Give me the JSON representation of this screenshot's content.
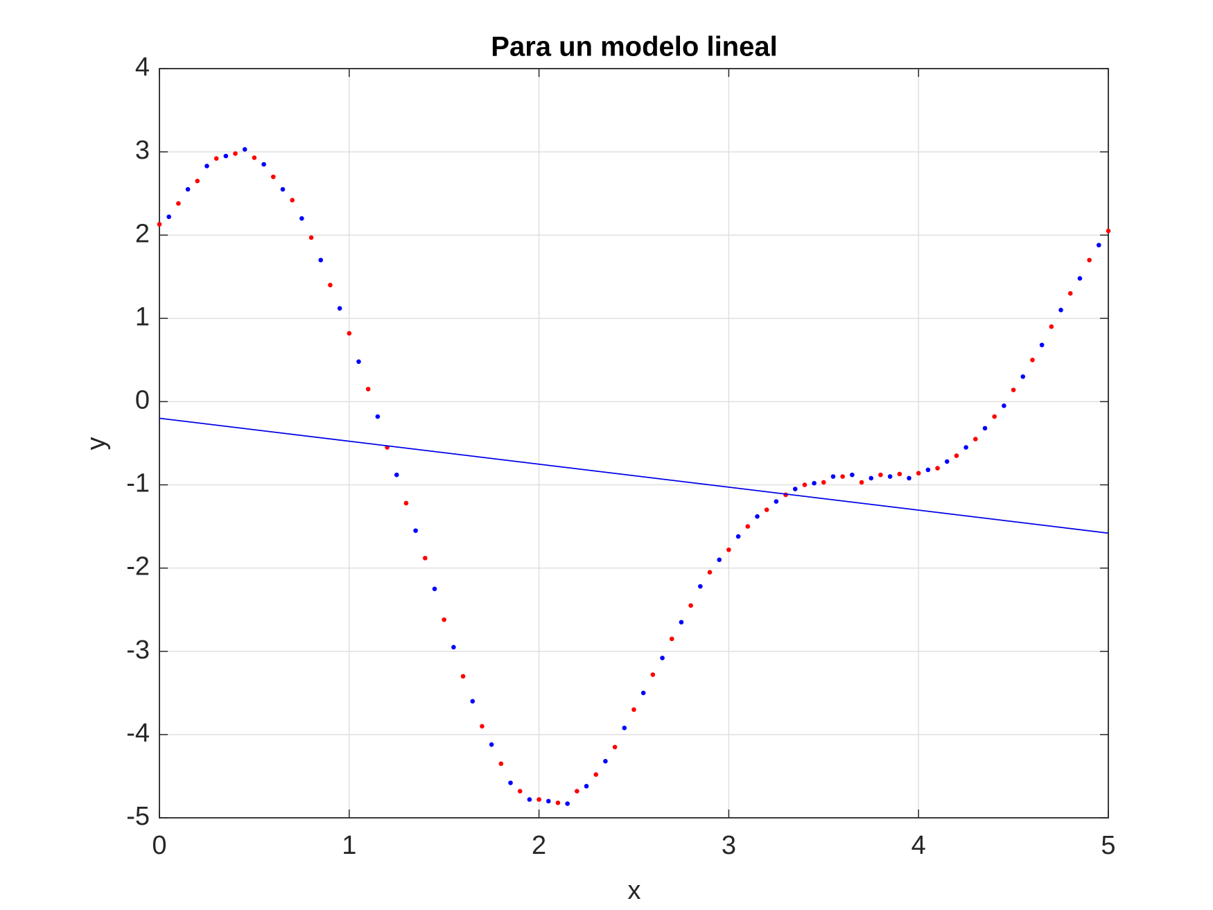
{
  "chart_data": {
    "type": "scatter",
    "title": "Para un modelo lineal",
    "x_label": "x",
    "y_label": "y",
    "xlim": [
      0,
      5
    ],
    "ylim": [
      -5,
      4
    ],
    "xticks": [
      0,
      1,
      2,
      3,
      4,
      5
    ],
    "yticks": [
      -5,
      -4,
      -3,
      -2,
      -1,
      0,
      1,
      2,
      3,
      4
    ],
    "grid": true,
    "series": [
      {
        "kind": "markers",
        "color": "#ff0000",
        "x": [
          0,
          0.1,
          0.2,
          0.3,
          0.4,
          0.5,
          0.6,
          0.7,
          0.8,
          0.9,
          1,
          1.1,
          1.2,
          1.3,
          1.4,
          1.5,
          1.6,
          1.7,
          1.8,
          1.9,
          2,
          2.1,
          2.2,
          2.3,
          2.4,
          2.5,
          2.6,
          2.7,
          2.8,
          2.9,
          3,
          3.1,
          3.2,
          3.3,
          3.4,
          3.5,
          3.6,
          3.7,
          3.8,
          3.9,
          4,
          4.1,
          4.2,
          4.3,
          4.4,
          4.5,
          4.6,
          4.7,
          4.8,
          4.9,
          5
        ],
        "values": [
          2.13,
          2.38,
          2.65,
          2.92,
          2.98,
          2.93,
          2.7,
          2.42,
          1.97,
          1.4,
          0.82,
          0.15,
          -0.55,
          -1.22,
          -1.88,
          -2.62,
          -3.3,
          -3.9,
          -4.35,
          -4.68,
          -4.78,
          -4.82,
          -4.68,
          -4.48,
          -4.15,
          -3.7,
          -3.28,
          -2.85,
          -2.45,
          -2.05,
          -1.78,
          -1.5,
          -1.3,
          -1.12,
          -1.0,
          -0.97,
          -0.9,
          -0.97,
          -0.88,
          -0.87,
          -0.86,
          -0.8,
          -0.65,
          -0.45,
          -0.18,
          0.14,
          0.5,
          0.9,
          1.3,
          1.7,
          2.05
        ]
      },
      {
        "kind": "markers",
        "color": "#0000ff",
        "x": [
          0.05,
          0.15,
          0.25,
          0.35,
          0.45,
          0.55,
          0.65,
          0.75,
          0.85,
          0.95,
          1.05,
          1.15,
          1.25,
          1.35,
          1.45,
          1.55,
          1.65,
          1.75,
          1.85,
          1.95,
          2.05,
          2.15,
          2.25,
          2.35,
          2.45,
          2.55,
          2.65,
          2.75,
          2.85,
          2.95,
          3.05,
          3.15,
          3.25,
          3.35,
          3.45,
          3.55,
          3.65,
          3.75,
          3.85,
          3.95,
          4.05,
          4.15,
          4.25,
          4.35,
          4.45,
          4.55,
          4.65,
          4.75,
          4.85,
          4.95
        ],
        "values": [
          2.22,
          2.55,
          2.83,
          2.95,
          3.03,
          2.85,
          2.55,
          2.2,
          1.7,
          1.12,
          0.48,
          -0.18,
          -0.88,
          -1.55,
          -2.25,
          -2.95,
          -3.6,
          -4.12,
          -4.58,
          -4.78,
          -4.8,
          -4.83,
          -4.62,
          -4.32,
          -3.92,
          -3.5,
          -3.08,
          -2.65,
          -2.22,
          -1.9,
          -1.62,
          -1.38,
          -1.2,
          -1.05,
          -0.98,
          -0.9,
          -0.88,
          -0.92,
          -0.9,
          -0.92,
          -0.82,
          -0.72,
          -0.55,
          -0.32,
          -0.05,
          0.3,
          0.68,
          1.1,
          1.48,
          1.88
        ]
      },
      {
        "kind": "line",
        "color": "#0000e6",
        "x": [
          0,
          5
        ],
        "values": [
          -0.2,
          -1.58
        ]
      }
    ]
  }
}
